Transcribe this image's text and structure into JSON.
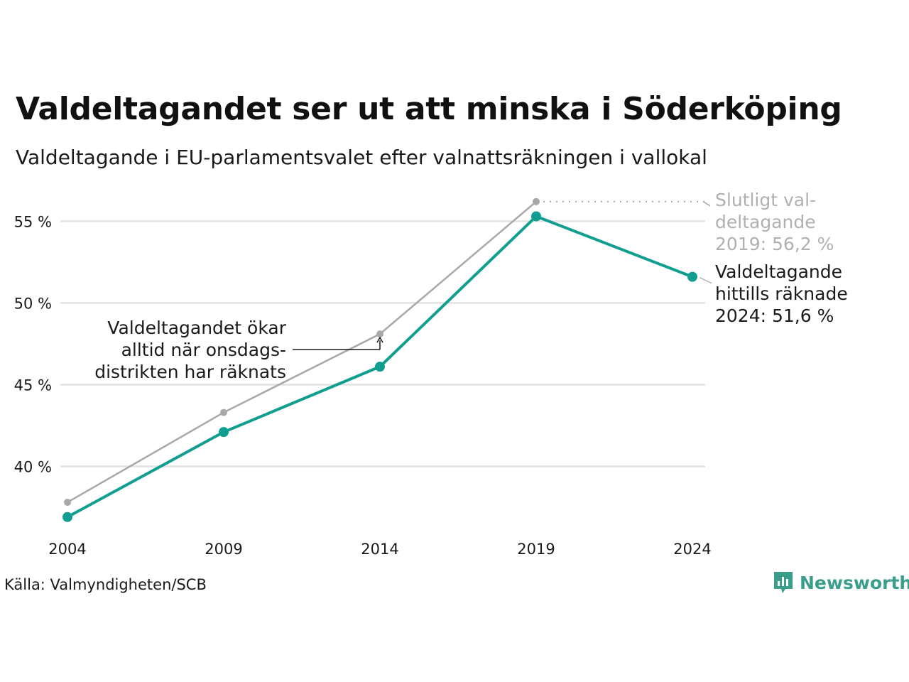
{
  "header": {
    "title": "Valdeltagandet ser ut att minska i Söderköping",
    "subtitle": "Valdeltagande i EU-parlamentsvalet efter valnattsräkningen i vallokal"
  },
  "footer": {
    "source": "Källa: Valmyndigheten/SCB",
    "brand": "Newsworthy"
  },
  "colors": {
    "primary": "#0f9e8f",
    "secondary": "#a8a8a8",
    "grid": "#e2e2e2",
    "brand": "#3a9e8c"
  },
  "chart_data": {
    "type": "line",
    "x": [
      2004,
      2009,
      2014,
      2019,
      2024
    ],
    "x_tick_labels": [
      "2004",
      "2009",
      "2014",
      "2019",
      "2024"
    ],
    "y_ticks": [
      40,
      45,
      50,
      55
    ],
    "y_tick_labels": [
      "40 %",
      "45 %",
      "50 %",
      "55 %"
    ],
    "ylim": [
      35.5,
      56.8
    ],
    "grid": true,
    "series": [
      {
        "key": "final",
        "values": [
          37.8,
          43.3,
          48.1,
          56.2,
          null
        ]
      },
      {
        "key": "election_night",
        "values": [
          36.9,
          42.1,
          46.1,
          55.3,
          51.6
        ]
      }
    ],
    "annotations": {
      "final_2019": [
        "Slutligt val-",
        "deltagande",
        "2019: 56,2 %"
      ],
      "counted_2024": [
        "Valdeltagande",
        "hittills räknade",
        "2024: 51,6 %"
      ],
      "increase_note": [
        "Valdeltagandet ökar",
        "alltid när onsdags-",
        "distrikten har räknats"
      ]
    }
  }
}
